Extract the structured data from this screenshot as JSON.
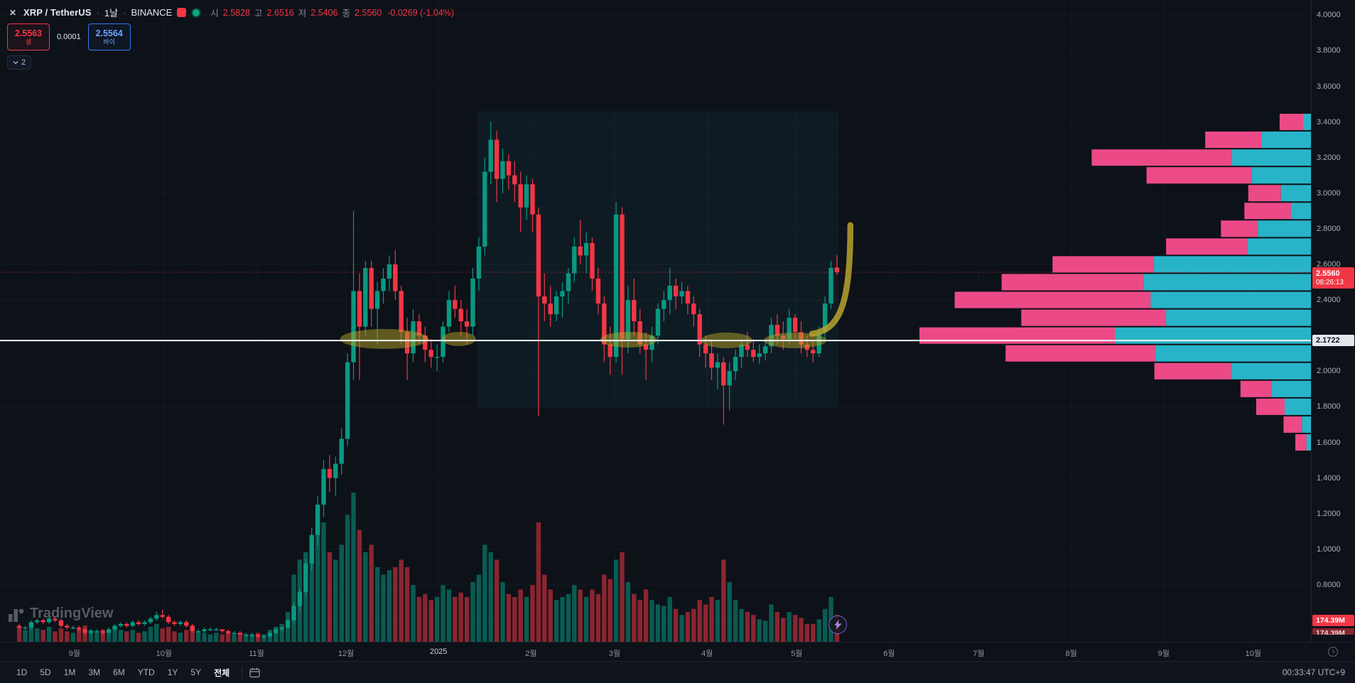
{
  "header": {
    "symbol": "XRP / TetherUS",
    "interval": "1날",
    "exchange": "BINANCE",
    "ohlc": {
      "o_label": "시",
      "o": "2.5828",
      "h_label": "고",
      "h": "2.6516",
      "l_label": "저",
      "l": "2.5406",
      "c_label": "종",
      "c": "2.5560",
      "change": "-0.0269 (-1.04%)"
    }
  },
  "trade_widget": {
    "sell_price": "2.5563",
    "sell_label": "셀",
    "spread": "0.0001",
    "buy_price": "2.5564",
    "buy_label": "바이"
  },
  "collapse_pill": {
    "count": "2"
  },
  "watermark": {
    "text": "TradingView"
  },
  "price_axis": {
    "ticks": [
      "4.0000",
      "3.8000",
      "3.6000",
      "3.4000",
      "3.2000",
      "3.0000",
      "2.8000",
      "2.6000",
      "2.4000",
      "2.0000",
      "1.8000",
      "1.6000",
      "1.4000",
      "1.2000",
      "1.0000",
      "0.8000"
    ],
    "current_price": "2.5560",
    "countdown": "08:26:13",
    "line_price": "2.1722",
    "volume_badge": "174.39M"
  },
  "time_axis": {
    "months": [
      [
        "9월",
        19,
        0
      ],
      [
        "10월",
        49,
        0
      ],
      [
        "11월",
        80,
        0
      ],
      [
        "12월",
        110,
        0
      ],
      [
        "2025",
        141,
        1
      ],
      [
        "2월",
        172,
        0
      ],
      [
        "3월",
        200,
        0
      ],
      [
        "4월",
        231,
        0
      ],
      [
        "5월",
        261,
        0
      ],
      [
        "6월",
        292,
        0
      ],
      [
        "7월",
        322,
        0
      ],
      [
        "8월",
        353,
        0
      ],
      [
        "9월",
        384,
        0
      ],
      [
        "10월",
        414,
        0
      ]
    ]
  },
  "toolbar": {
    "ranges": [
      "1D",
      "5D",
      "1M",
      "3M",
      "6M",
      "YTD",
      "1Y",
      "5Y",
      "전체"
    ],
    "active_range": "전체",
    "clock": "00:33:47 UTC+9"
  },
  "colors": {
    "up": "#089981",
    "down": "#f23645",
    "vol_up": "rgba(8,153,129,0.55)",
    "vol_down": "rgba(242,54,69,0.55)",
    "vp_up": "#28b4c8",
    "vp_down": "#ec4a87",
    "box_fill": "rgba(41,171,186,0.07)",
    "highlight_fill": "rgba(178,162,39,0.5)",
    "arrow": "#b9a32d",
    "hline": "#f2f5fa",
    "grid": "rgba(150,160,180,0.055)"
  },
  "chart_data": {
    "type": "candlestick",
    "title": "XRP / TetherUS · 1날 · BINANCE",
    "ylim": [
      0.48,
      4.085
    ],
    "price_step": 0.2,
    "x0": 25,
    "day_w": 4.2,
    "candle_w": 6.4,
    "vol_max_h": 210,
    "current_price": 2.556,
    "hline_price": 2.1722,
    "dotted_price": 2.556,
    "range_box": {
      "day_start": 154,
      "day_end": 275,
      "price_top": 3.46,
      "price_bottom": 1.8
    },
    "highlights": [
      [
        122.8,
        2.181,
        14.8,
        0.056
      ],
      [
        147.8,
        2.181,
        5.7,
        0.04
      ],
      [
        204.7,
        2.177,
        9.5,
        0.044
      ],
      [
        237.6,
        2.173,
        8.6,
        0.044
      ],
      [
        260.5,
        2.173,
        10.5,
        0.044
      ]
    ],
    "arrow": {
      "from": [
        266.2,
        2.21
      ],
      "to": [
        279.0,
        2.82
      ]
    },
    "volume_profile": {
      "max_w": 551,
      "rows": [
        [
          3.4,
          0.08,
          0.25
        ],
        [
          3.3,
          0.27,
          0.47
        ],
        [
          3.2,
          0.56,
          0.36
        ],
        [
          3.1,
          0.42,
          0.36
        ],
        [
          3.0,
          0.16,
          0.48
        ],
        [
          2.9,
          0.17,
          0.3
        ],
        [
          2.8,
          0.23,
          0.59
        ],
        [
          2.7,
          0.37,
          0.44
        ],
        [
          2.6,
          0.66,
          0.61
        ],
        [
          2.5,
          0.79,
          0.54
        ],
        [
          2.4,
          0.91,
          0.45
        ],
        [
          2.3,
          0.74,
          0.5
        ],
        [
          2.2,
          1.0,
          0.5
        ],
        [
          2.1,
          0.78,
          0.51
        ],
        [
          2.0,
          0.4,
          0.51
        ],
        [
          1.9,
          0.18,
          0.56
        ],
        [
          1.8,
          0.14,
          0.48
        ],
        [
          1.7,
          0.07,
          0.33
        ],
        [
          1.6,
          0.04,
          0.28
        ]
      ]
    },
    "candles": [
      [
        0.57,
        0.58,
        0.55,
        0.56,
        0.1
      ],
      [
        0.56,
        0.57,
        0.55,
        0.56,
        0.08
      ],
      [
        0.56,
        0.6,
        0.55,
        0.59,
        0.12
      ],
      [
        0.59,
        0.61,
        0.58,
        0.6,
        0.09
      ],
      [
        0.6,
        0.61,
        0.58,
        0.59,
        0.08
      ],
      [
        0.59,
        0.62,
        0.58,
        0.61,
        0.1
      ],
      [
        0.61,
        0.62,
        0.59,
        0.6,
        0.07
      ],
      [
        0.6,
        0.61,
        0.56,
        0.57,
        0.09
      ],
      [
        0.57,
        0.58,
        0.55,
        0.56,
        0.07
      ],
      [
        0.56,
        0.57,
        0.55,
        0.56,
        0.06
      ],
      [
        0.56,
        0.57,
        0.54,
        0.55,
        0.09
      ],
      [
        0.55,
        0.56,
        0.52,
        0.53,
        0.11
      ],
      [
        0.53,
        0.55,
        0.52,
        0.54,
        0.08
      ],
      [
        0.54,
        0.55,
        0.53,
        0.54,
        0.07
      ],
      [
        0.54,
        0.55,
        0.52,
        0.53,
        0.08
      ],
      [
        0.53,
        0.56,
        0.53,
        0.55,
        0.07
      ],
      [
        0.55,
        0.58,
        0.54,
        0.57,
        0.09
      ],
      [
        0.57,
        0.59,
        0.56,
        0.58,
        0.08
      ],
      [
        0.58,
        0.59,
        0.56,
        0.57,
        0.07
      ],
      [
        0.57,
        0.6,
        0.56,
        0.59,
        0.08
      ],
      [
        0.59,
        0.6,
        0.57,
        0.58,
        0.06
      ],
      [
        0.58,
        0.6,
        0.57,
        0.59,
        0.07
      ],
      [
        0.59,
        0.62,
        0.58,
        0.61,
        0.1
      ],
      [
        0.61,
        0.65,
        0.6,
        0.63,
        0.12
      ],
      [
        0.63,
        0.66,
        0.61,
        0.62,
        0.09
      ],
      [
        0.62,
        0.63,
        0.58,
        0.59,
        0.1
      ],
      [
        0.59,
        0.6,
        0.57,
        0.58,
        0.07
      ],
      [
        0.58,
        0.6,
        0.57,
        0.59,
        0.06
      ],
      [
        0.59,
        0.6,
        0.56,
        0.57,
        0.08
      ],
      [
        0.57,
        0.58,
        0.53,
        0.54,
        0.11
      ],
      [
        0.54,
        0.55,
        0.53,
        0.54,
        0.07
      ],
      [
        0.54,
        0.56,
        0.53,
        0.55,
        0.06
      ],
      [
        0.55,
        0.56,
        0.54,
        0.55,
        0.05
      ],
      [
        0.55,
        0.56,
        0.54,
        0.55,
        0.06
      ],
      [
        0.55,
        0.55,
        0.53,
        0.54,
        0.05
      ],
      [
        0.54,
        0.55,
        0.52,
        0.53,
        0.06
      ],
      [
        0.53,
        0.54,
        0.52,
        0.53,
        0.05
      ],
      [
        0.53,
        0.54,
        0.52,
        0.52,
        0.06
      ],
      [
        0.52,
        0.53,
        0.51,
        0.52,
        0.05
      ],
      [
        0.52,
        0.53,
        0.51,
        0.52,
        0.05
      ],
      [
        0.52,
        0.52,
        0.5,
        0.51,
        0.06
      ],
      [
        0.51,
        0.52,
        0.5,
        0.51,
        0.05
      ],
      [
        0.51,
        0.54,
        0.5,
        0.53,
        0.08
      ],
      [
        0.53,
        0.56,
        0.52,
        0.55,
        0.1
      ],
      [
        0.55,
        0.57,
        0.54,
        0.56,
        0.12
      ],
      [
        0.56,
        0.61,
        0.55,
        0.6,
        0.2
      ],
      [
        0.6,
        0.7,
        0.58,
        0.68,
        0.45
      ],
      [
        0.68,
        0.78,
        0.65,
        0.76,
        0.55
      ],
      [
        0.76,
        0.95,
        0.74,
        0.92,
        0.6
      ],
      [
        0.92,
        1.12,
        0.88,
        1.08,
        0.7
      ],
      [
        1.08,
        1.3,
        1.02,
        1.25,
        0.85
      ],
      [
        1.25,
        1.5,
        1.18,
        1.45,
        0.8
      ],
      [
        1.45,
        1.53,
        1.32,
        1.4,
        0.6
      ],
      [
        1.4,
        1.52,
        1.3,
        1.48,
        0.55
      ],
      [
        1.48,
        1.68,
        1.42,
        1.62,
        0.65
      ],
      [
        1.62,
        2.1,
        1.58,
        2.05,
        0.85
      ],
      [
        2.05,
        2.9,
        1.95,
        2.45,
        1.0
      ],
      [
        2.45,
        2.55,
        1.95,
        2.25,
        0.75
      ],
      [
        2.25,
        2.62,
        2.2,
        2.58,
        0.6
      ],
      [
        2.58,
        2.62,
        2.25,
        2.35,
        0.65
      ],
      [
        2.35,
        2.5,
        2.15,
        2.45,
        0.5
      ],
      [
        2.45,
        2.58,
        2.38,
        2.52,
        0.45
      ],
      [
        2.52,
        2.65,
        2.45,
        2.6,
        0.48
      ],
      [
        2.6,
        2.68,
        2.4,
        2.45,
        0.5
      ],
      [
        2.45,
        2.48,
        2.15,
        2.22,
        0.55
      ],
      [
        2.22,
        2.3,
        1.95,
        2.1,
        0.5
      ],
      [
        2.1,
        2.35,
        2.05,
        2.28,
        0.38
      ],
      [
        2.28,
        2.32,
        2.15,
        2.2,
        0.3
      ],
      [
        2.2,
        2.25,
        2.05,
        2.12,
        0.32
      ],
      [
        2.12,
        2.18,
        2.02,
        2.08,
        0.28
      ],
      [
        2.08,
        2.15,
        2.0,
        2.08,
        0.3
      ],
      [
        2.08,
        2.28,
        2.05,
        2.25,
        0.38
      ],
      [
        2.25,
        2.45,
        2.22,
        2.4,
        0.35
      ],
      [
        2.4,
        2.48,
        2.3,
        2.35,
        0.3
      ],
      [
        2.35,
        2.4,
        2.2,
        2.28,
        0.33
      ],
      [
        2.28,
        2.35,
        2.15,
        2.25,
        0.3
      ],
      [
        2.25,
        2.58,
        2.2,
        2.52,
        0.4
      ],
      [
        2.52,
        2.75,
        2.45,
        2.7,
        0.45
      ],
      [
        2.7,
        3.2,
        2.65,
        3.12,
        0.65
      ],
      [
        3.12,
        3.4,
        3.05,
        3.3,
        0.6
      ],
      [
        3.3,
        3.35,
        2.95,
        3.08,
        0.55
      ],
      [
        3.08,
        3.25,
        3.0,
        3.18,
        0.4
      ],
      [
        3.18,
        3.22,
        3.02,
        3.1,
        0.32
      ],
      [
        3.1,
        3.18,
        2.95,
        3.05,
        0.3
      ],
      [
        3.05,
        3.12,
        2.78,
        2.92,
        0.35
      ],
      [
        2.92,
        3.1,
        2.85,
        3.05,
        0.3
      ],
      [
        3.05,
        3.08,
        2.78,
        2.88,
        0.38
      ],
      [
        2.88,
        2.92,
        1.75,
        2.42,
        0.8
      ],
      [
        2.42,
        2.55,
        2.28,
        2.38,
        0.45
      ],
      [
        2.38,
        2.48,
        2.25,
        2.32,
        0.35
      ],
      [
        2.32,
        2.45,
        2.28,
        2.42,
        0.28
      ],
      [
        2.42,
        2.5,
        2.3,
        2.45,
        0.3
      ],
      [
        2.45,
        2.58,
        2.38,
        2.55,
        0.32
      ],
      [
        2.55,
        2.75,
        2.5,
        2.7,
        0.38
      ],
      [
        2.7,
        2.85,
        2.6,
        2.65,
        0.35
      ],
      [
        2.65,
        2.78,
        2.55,
        2.72,
        0.3
      ],
      [
        2.72,
        2.75,
        2.45,
        2.52,
        0.35
      ],
      [
        2.52,
        2.58,
        2.32,
        2.38,
        0.32
      ],
      [
        2.38,
        2.42,
        2.05,
        2.15,
        0.45
      ],
      [
        2.15,
        2.25,
        1.98,
        2.08,
        0.42
      ],
      [
        2.08,
        2.95,
        2.05,
        2.88,
        0.55
      ],
      [
        2.88,
        2.92,
        1.98,
        2.18,
        0.6
      ],
      [
        2.18,
        2.48,
        2.1,
        2.4,
        0.4
      ],
      [
        2.4,
        2.52,
        2.2,
        2.28,
        0.32
      ],
      [
        2.28,
        2.35,
        2.1,
        2.15,
        0.28
      ],
      [
        2.15,
        2.22,
        1.95,
        2.12,
        0.35
      ],
      [
        2.12,
        2.25,
        2.05,
        2.2,
        0.28
      ],
      [
        2.2,
        2.38,
        2.15,
        2.35,
        0.25
      ],
      [
        2.35,
        2.45,
        2.28,
        2.4,
        0.24
      ],
      [
        2.4,
        2.58,
        2.32,
        2.48,
        0.3
      ],
      [
        2.48,
        2.52,
        2.35,
        2.42,
        0.22
      ],
      [
        2.42,
        2.5,
        2.38,
        2.45,
        0.18
      ],
      [
        2.45,
        2.48,
        2.32,
        2.38,
        0.2
      ],
      [
        2.38,
        2.42,
        2.25,
        2.32,
        0.22
      ],
      [
        2.32,
        2.35,
        2.08,
        2.15,
        0.28
      ],
      [
        2.15,
        2.2,
        2.02,
        2.1,
        0.25
      ],
      [
        2.1,
        2.18,
        1.95,
        2.02,
        0.3
      ],
      [
        2.02,
        2.1,
        1.9,
        2.05,
        0.28
      ],
      [
        2.05,
        2.08,
        1.7,
        1.92,
        0.55
      ],
      [
        1.92,
        2.05,
        1.78,
        2.0,
        0.4
      ],
      [
        2.0,
        2.12,
        1.95,
        2.08,
        0.28
      ],
      [
        2.08,
        2.18,
        2.02,
        2.15,
        0.22
      ],
      [
        2.15,
        2.22,
        2.08,
        2.12,
        0.2
      ],
      [
        2.12,
        2.18,
        2.05,
        2.08,
        0.18
      ],
      [
        2.08,
        2.15,
        2.04,
        2.1,
        0.15
      ],
      [
        2.1,
        2.18,
        2.06,
        2.14,
        0.14
      ],
      [
        2.14,
        2.3,
        2.1,
        2.26,
        0.25
      ],
      [
        2.26,
        2.32,
        2.15,
        2.2,
        0.2
      ],
      [
        2.2,
        2.28,
        2.12,
        2.18,
        0.16
      ],
      [
        2.18,
        2.35,
        2.15,
        2.3,
        0.2
      ],
      [
        2.3,
        2.32,
        2.18,
        2.22,
        0.18
      ],
      [
        2.22,
        2.28,
        2.1,
        2.15,
        0.16
      ],
      [
        2.15,
        2.2,
        2.08,
        2.12,
        0.12
      ],
      [
        2.12,
        2.18,
        2.05,
        2.1,
        0.12
      ],
      [
        2.1,
        2.25,
        2.08,
        2.22,
        0.15
      ],
      [
        2.22,
        2.42,
        2.18,
        2.38,
        0.22
      ],
      [
        2.38,
        2.62,
        2.35,
        2.58,
        0.3
      ],
      [
        2.5828,
        2.6516,
        2.5406,
        2.556,
        0.18
      ]
    ]
  }
}
